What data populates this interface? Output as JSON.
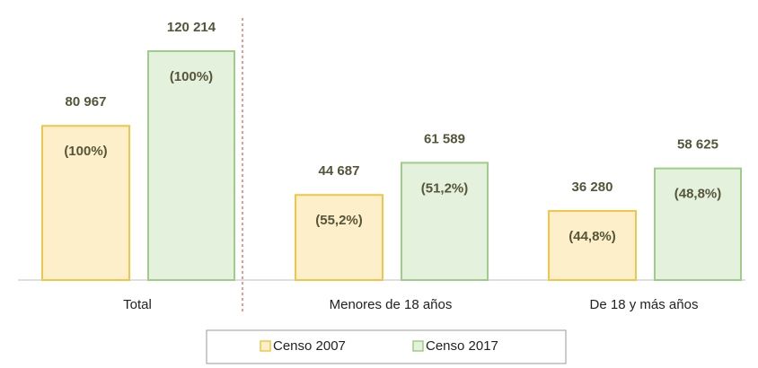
{
  "chart_data": {
    "type": "bar",
    "categories": [
      "Total",
      "Menores de 18 años",
      "De 18 y más años"
    ],
    "series": [
      {
        "name": "Censo 2007",
        "color": "#fdefc9",
        "stroke": "#f0c64a",
        "values": [
          80967,
          44687,
          36280
        ],
        "value_labels": [
          "80 967",
          "44 687",
          "36 280"
        ],
        "share_labels": [
          "(100%)",
          "(55,2%)",
          "(44,8%)"
        ]
      },
      {
        "name": "Censo 2017",
        "color": "#e4f1dd",
        "stroke": "#9fcd89",
        "values": [
          120214,
          61589,
          58625
        ],
        "value_labels": [
          "120 214",
          "61 589",
          "58 625"
        ],
        "share_labels": [
          "(100%)",
          "(51,2%)",
          "(48,8%)"
        ]
      }
    ]
  }
}
